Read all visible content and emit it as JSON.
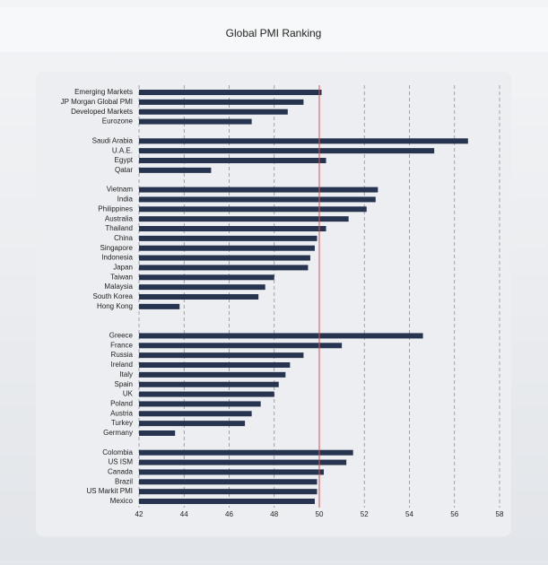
{
  "chart_data": {
    "type": "bar",
    "orientation": "horizontal",
    "title": "Global PMI Ranking",
    "categories": [
      "Emerging Markets",
      "JP Morgan Global PMI",
      "Developed Markets",
      "Eurozone",
      null,
      "Saudi Arabia",
      "U.A.E.",
      "Egypt",
      "Qatar",
      null,
      "Vietnam",
      "India",
      "Philippines",
      "Australia",
      "Thailand",
      "China",
      "Singapore",
      "Indonesia",
      "Japan",
      "Taiwan",
      "Malaysia",
      "South Korea",
      "Hong Kong",
      null,
      null,
      "Greece",
      "France",
      "Russia",
      "Ireland",
      "Italy",
      "Spain",
      "UK",
      "Poland",
      "Austria",
      "Turkey",
      "Germany",
      null,
      "Colombia",
      "US ISM",
      "Canada",
      "Brazil",
      "US Markit PMI",
      "Mexico"
    ],
    "values": [
      50.1,
      49.3,
      48.6,
      47.0,
      null,
      56.6,
      55.1,
      50.3,
      45.2,
      null,
      52.6,
      52.5,
      52.1,
      51.3,
      50.3,
      49.9,
      49.8,
      49.6,
      49.5,
      48.0,
      47.6,
      47.3,
      43.8,
      null,
      null,
      54.6,
      51.0,
      49.3,
      48.7,
      48.5,
      48.2,
      48.0,
      47.4,
      47.0,
      46.7,
      43.6,
      null,
      51.5,
      51.2,
      50.2,
      49.9,
      49.9,
      49.8
    ],
    "color": "#26344f",
    "xlim": [
      42,
      58
    ],
    "xticks": [
      42,
      44,
      46,
      48,
      50,
      52,
      54,
      56,
      58
    ],
    "grid": true,
    "reference_line": 50,
    "reference_color": "#d9534f"
  }
}
